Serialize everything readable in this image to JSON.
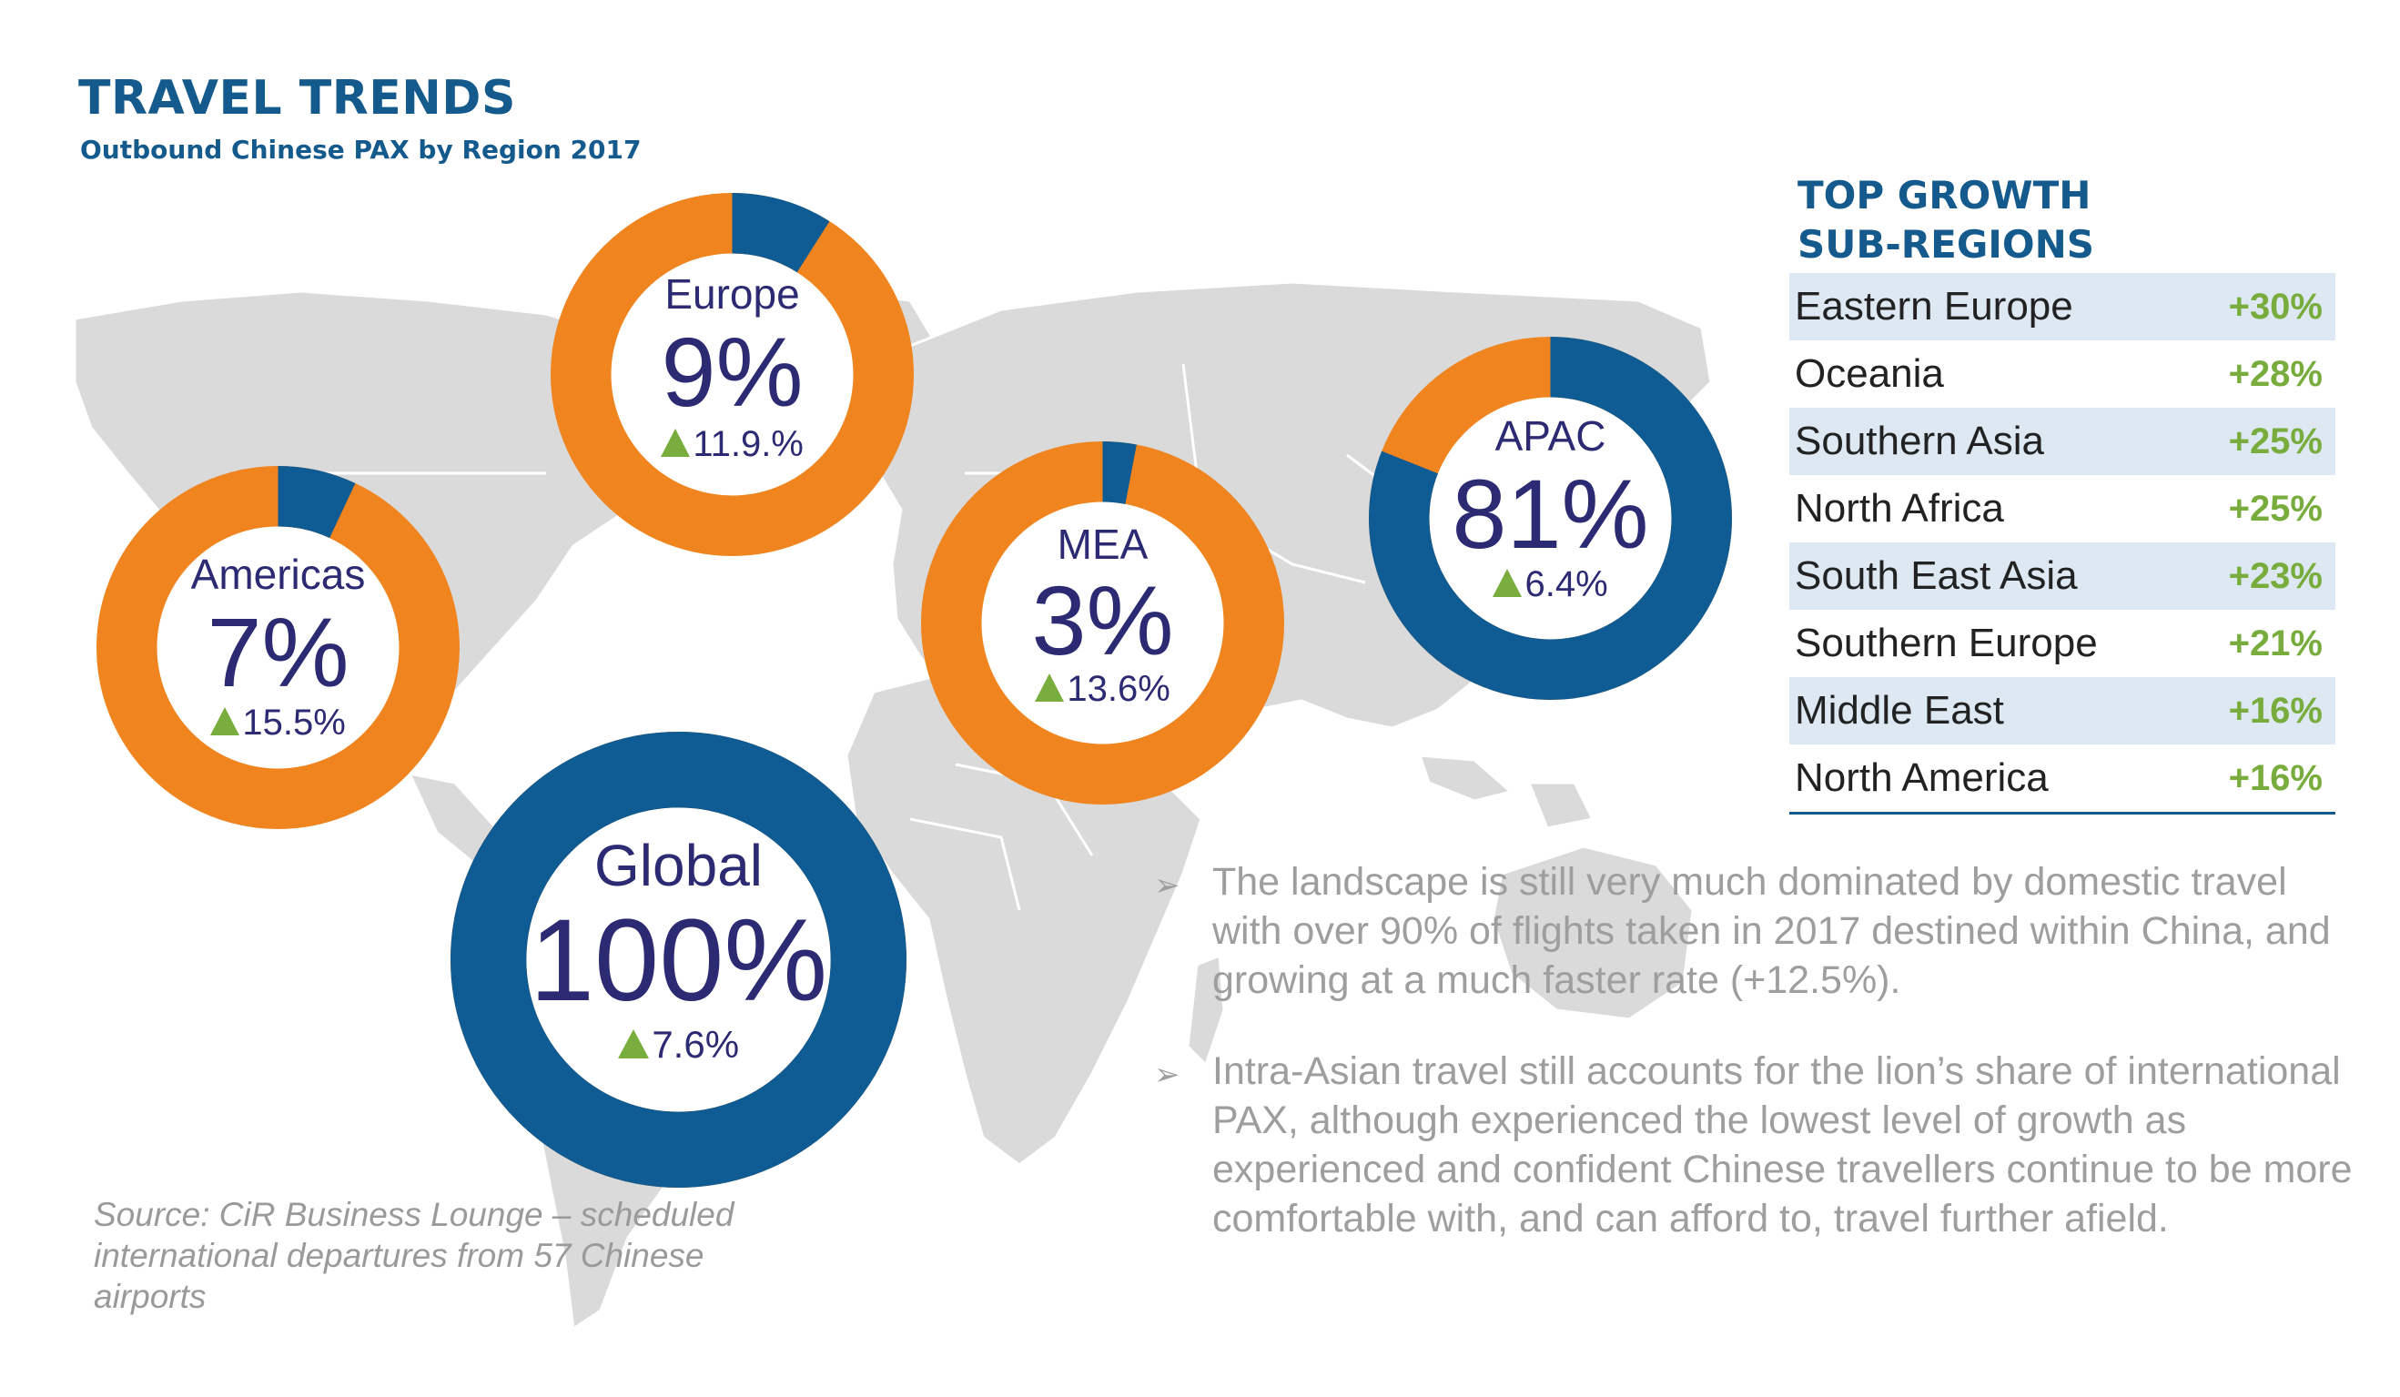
{
  "header": {
    "title": "TRAVEL TRENDS",
    "subtitle": "Outbound Chinese PAX by Region 2017"
  },
  "colors": {
    "primary_blue": "#145a8d",
    "donut_blue": "#0f5b94",
    "donut_orange": "#f0841f",
    "growth_green": "#79ae3f",
    "map_gray": "#dadada",
    "label_navy": "#2b2a72"
  },
  "chart_data": [
    {
      "type": "pie",
      "name": "Europe",
      "label": "Europe",
      "share_label": "9%",
      "share": 9,
      "growth_label": "11.9.%",
      "growth": 11.9
    },
    {
      "type": "pie",
      "name": "Americas",
      "label": "Americas",
      "share_label": "7%",
      "share": 7,
      "growth_label": "15.5%",
      "growth": 15.5
    },
    {
      "type": "pie",
      "name": "MEA",
      "label": "MEA",
      "share_label": "3%",
      "share": 3,
      "growth_label": "13.6%",
      "growth": 13.6
    },
    {
      "type": "pie",
      "name": "APAC",
      "label": "APAC",
      "share_label": "81%",
      "share": 81,
      "growth_label": "6.4%",
      "growth": 6.4
    },
    {
      "type": "pie",
      "name": "Global",
      "label": "Global",
      "share_label": "100%",
      "share": 100,
      "growth_label": "7.6%",
      "growth": 7.6
    }
  ],
  "top_growth": {
    "title": "TOP  GROWTH\nSUB-REGIONS",
    "rows": [
      {
        "name": "Eastern Europe",
        "value": "+30%"
      },
      {
        "name": "Oceania",
        "value": "+28%"
      },
      {
        "name": "Southern Asia",
        "value": "+25%"
      },
      {
        "name": "North Africa",
        "value": "+25%"
      },
      {
        "name": "South East Asia",
        "value": "+23%"
      },
      {
        "name": "Southern Europe",
        "value": "+21%"
      },
      {
        "name": "Middle East",
        "value": "+16%"
      },
      {
        "name": "North America",
        "value": "+16%"
      }
    ]
  },
  "bullets": [
    "The landscape is still very much dominated by domestic travel with over 90% of flights taken in 2017 destined within China, and growing at a much faster rate (+12.5%).",
    "Intra-Asian travel still accounts for the lion’s share of international PAX, although experienced the lowest level of growth as experienced and confident Chinese travellers continue to be more comfortable with, and can afford to, travel further afield."
  ],
  "source": "Source: CiR Business Lounge – scheduled international departures from 57 Chinese airports"
}
